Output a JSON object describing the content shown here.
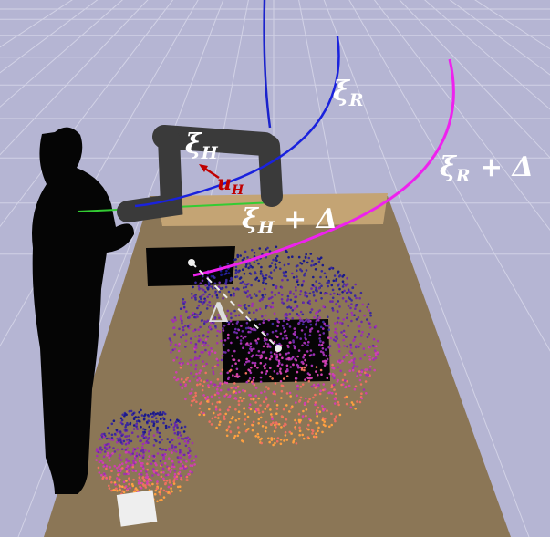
{
  "labels": [
    {
      "symbol": "ξ",
      "subscript": "R"
    },
    {
      "symbol": "ξ",
      "subscript": "H"
    },
    {
      "symbol": "u",
      "subscript": "H"
    },
    {
      "symbol": "ξ",
      "subscript": "R",
      "suffix": " + Δ"
    },
    {
      "symbol": "ξ",
      "subscript": "H",
      "suffix": " + Δ"
    },
    {
      "symbol": "Δ"
    }
  ]
}
